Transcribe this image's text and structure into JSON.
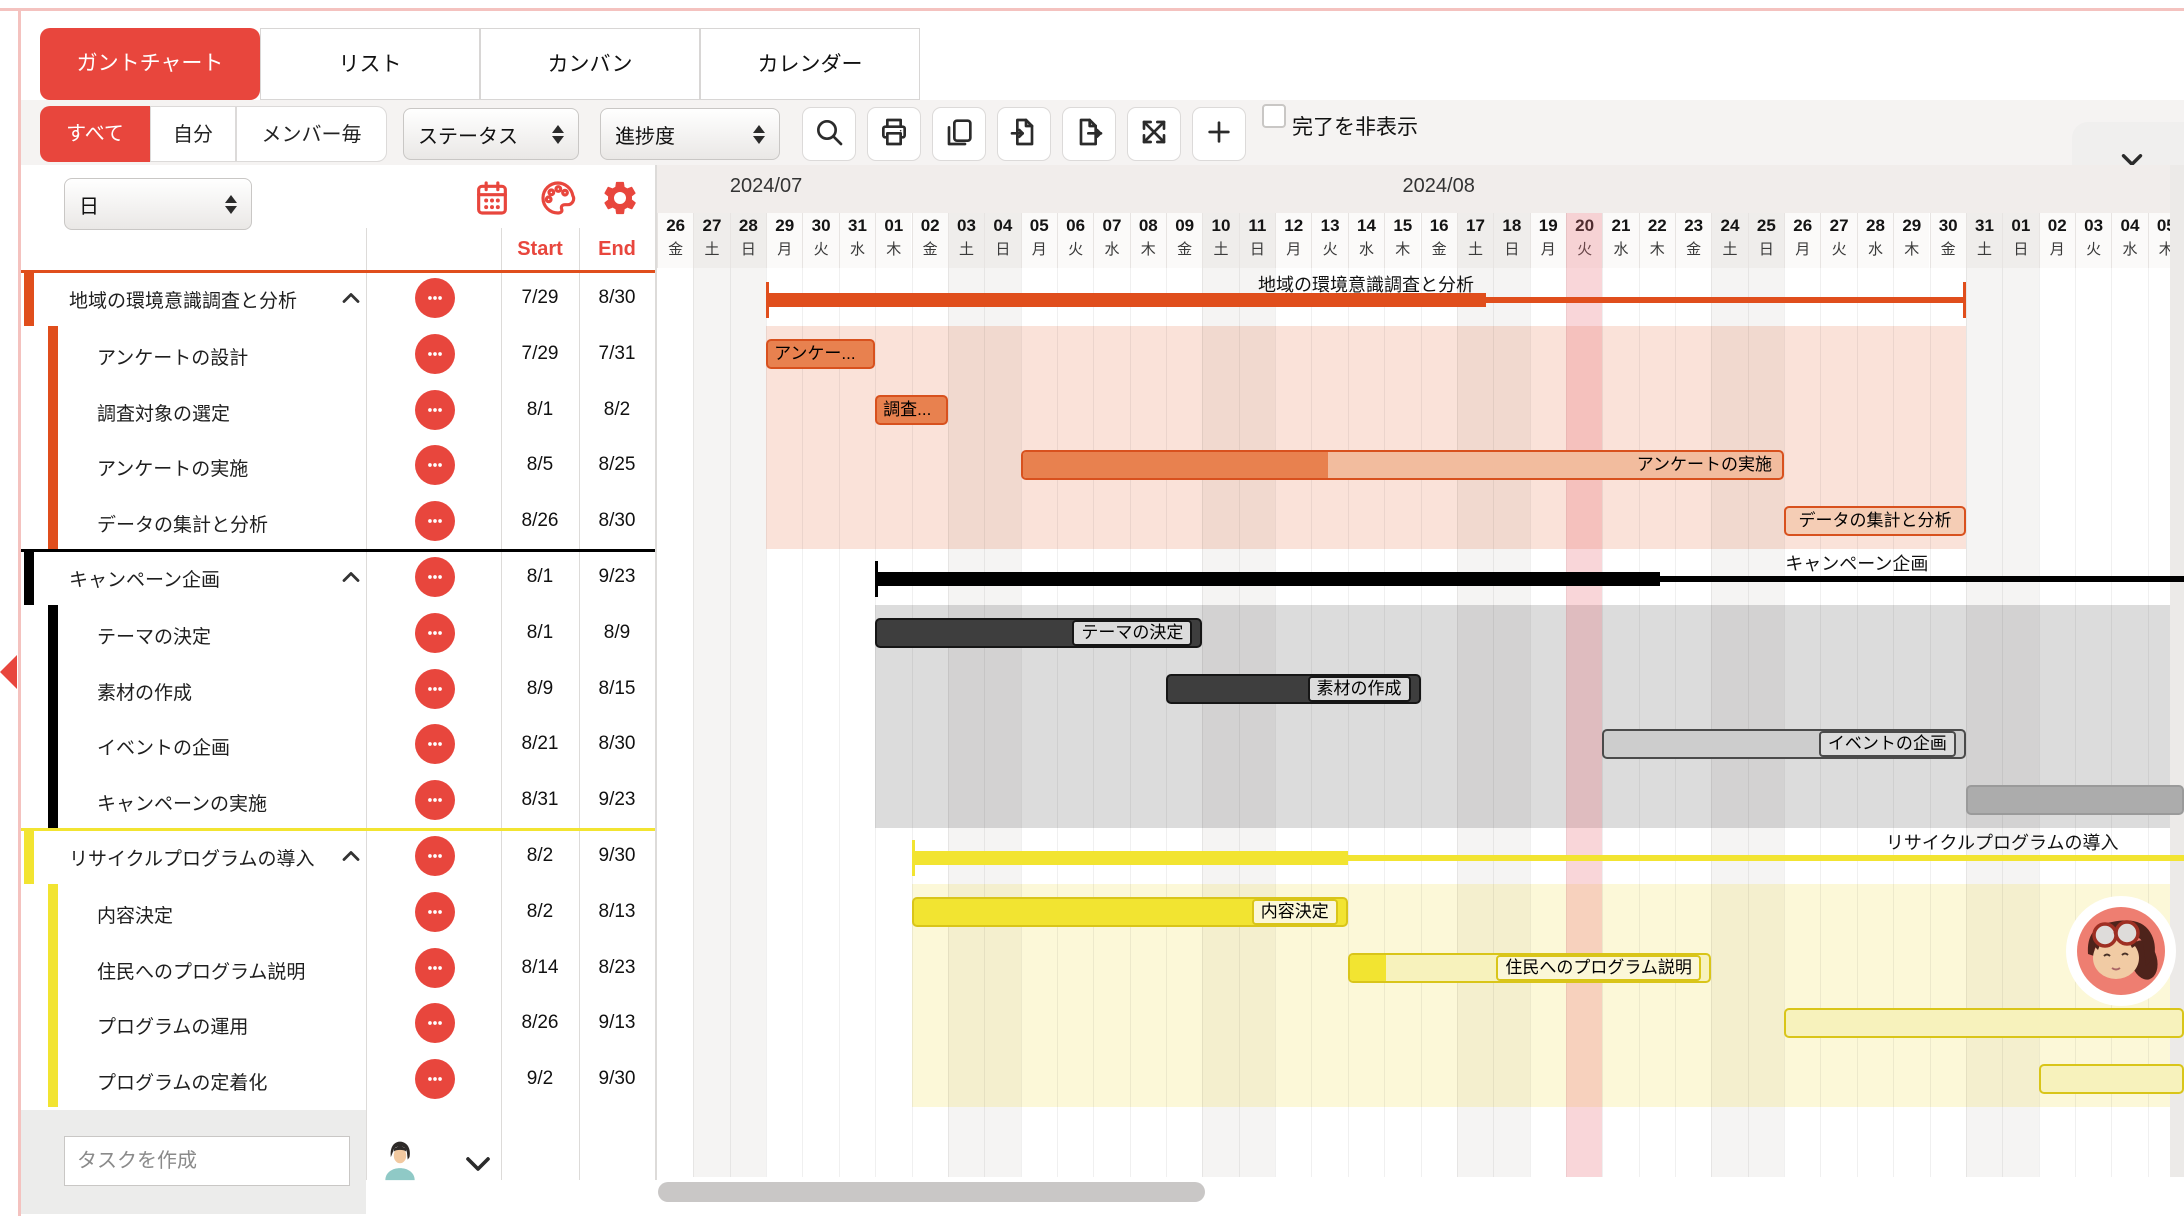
{
  "window": {
    "accent": "#E8463D",
    "frame_color": "#F4C2BF"
  },
  "tabs": {
    "items": [
      {
        "label": "ガントチャート",
        "active": true
      },
      {
        "label": "リスト",
        "active": false
      },
      {
        "label": "カンバン",
        "active": false
      },
      {
        "label": "カレンダー",
        "active": false
      }
    ]
  },
  "toolbar": {
    "scope_buttons": [
      {
        "label": "すべて",
        "active": true
      },
      {
        "label": "自分",
        "active": false
      },
      {
        "label": "メンバー毎",
        "active": false
      }
    ],
    "selects": [
      {
        "value": "ステータス"
      },
      {
        "value": "進捗度"
      }
    ],
    "icon_buttons": [
      "search",
      "print",
      "copy",
      "import",
      "export",
      "expand",
      "add"
    ],
    "hide_completed": {
      "label": "完了を非表示",
      "checked": false
    }
  },
  "sidebar": {
    "zoom_select": {
      "value": "日"
    },
    "header_icons": [
      "calendar",
      "palette",
      "gear"
    ],
    "columns": {
      "start": "Start",
      "end": "End"
    },
    "create_task": {
      "placeholder": "タスクを作成"
    }
  },
  "chart_data": {
    "type": "gantt",
    "origin": "2024-07-26",
    "visible_days": 43,
    "today": "2024-08-20",
    "months": [
      {
        "label": "2024/07",
        "days": 6
      },
      {
        "label": "2024/08",
        "days": 31
      },
      {
        "label": "",
        "days": 6
      }
    ],
    "weekday_names": [
      "日",
      "月",
      "火",
      "水",
      "木",
      "金",
      "土"
    ],
    "groups": [
      {
        "name": "地域の環境意識調査と分析",
        "start": "2024-07-29",
        "end": "2024-08-30",
        "progress": 0.6,
        "colors": {
          "summary": "#E04E1C",
          "border": "#D8511E",
          "bar": "#E8814F",
          "pale": "#F2BC9E",
          "chip": "#F5CDB5",
          "bg": "rgba(226,96,44,0.18)"
        },
        "tasks": [
          {
            "name": "アンケートの設計",
            "bar_label": "アンケー...",
            "start": "2024-07-29",
            "end": "2024-07-31",
            "variant": "solid",
            "label_pos": "left"
          },
          {
            "name": "調査対象の選定",
            "bar_label": "調査...",
            "start": "2024-08-01",
            "end": "2024-08-02",
            "variant": "solid",
            "label_pos": "left"
          },
          {
            "name": "アンケートの実施",
            "bar_label": "アンケートの実施",
            "start": "2024-08-05",
            "end": "2024-08-25",
            "variant": "progress",
            "progress": 0.4,
            "label_pos": "right-text"
          },
          {
            "name": "データの集計と分析",
            "bar_label": "データの集計と分析",
            "start": "2024-08-26",
            "end": "2024-08-30",
            "variant": "outline",
            "label_pos": "center"
          }
        ]
      },
      {
        "name": "キャンペーン企画",
        "start": "2024-08-01",
        "end": "2024-09-23",
        "progress": 0.4,
        "colors": {
          "summary": "#000000",
          "border": "#161616",
          "bar": "#3E3E3E",
          "pale": "#CDCDCD",
          "chip": "#DCDCDC",
          "bg": "rgba(40,40,40,0.16)"
        },
        "tasks": [
          {
            "name": "テーマの決定",
            "bar_label": "テーマの決定",
            "start": "2024-08-01",
            "end": "2024-08-09",
            "variant": "dark",
            "label_pos": "chip-right"
          },
          {
            "name": "素材の作成",
            "bar_label": "素材の作成",
            "start": "2024-08-09",
            "end": "2024-08-15",
            "variant": "dark",
            "label_pos": "chip-right"
          },
          {
            "name": "イベントの企画",
            "bar_label": "イベントの企画",
            "start": "2024-08-21",
            "end": "2024-08-30",
            "variant": "light",
            "border": "#4A4A4A",
            "label_pos": "chip-right"
          },
          {
            "name": "キャンペーンの実施",
            "bar_label": "",
            "start": "2024-08-31",
            "end": "2024-09-23",
            "variant": "mid",
            "fill": "#ACACAC",
            "border": "#9A9A9A",
            "label_pos": "none"
          }
        ]
      },
      {
        "name": "リサイクルプログラムの導入",
        "start": "2024-08-02",
        "end": "2024-09-30",
        "progress": 0.2,
        "colors": {
          "summary": "#F2E431",
          "border": "#D9C519",
          "bar": "#F2E431",
          "pale": "#F7F2BC",
          "chip": "#FBF7D8",
          "bg": "rgba(240,222,60,0.20)"
        },
        "tasks": [
          {
            "name": "内容決定",
            "bar_label": "内容決定",
            "start": "2024-08-02",
            "end": "2024-08-13",
            "variant": "solid",
            "label_pos": "chip-right"
          },
          {
            "name": "住民へのプログラム説明",
            "bar_label": "住民へのプログラム説明",
            "start": "2024-08-14",
            "end": "2024-08-23",
            "variant": "progress",
            "progress": 0.1,
            "label_pos": "chip-right"
          },
          {
            "name": "プログラムの運用",
            "bar_label": "",
            "start": "2024-08-26",
            "end": "2024-09-13",
            "variant": "pale",
            "label_pos": "none"
          },
          {
            "name": "プログラムの定着化",
            "bar_label": "",
            "start": "2024-09-02",
            "end": "2024-09-30",
            "variant": "pale",
            "label_pos": "none"
          }
        ]
      }
    ]
  }
}
